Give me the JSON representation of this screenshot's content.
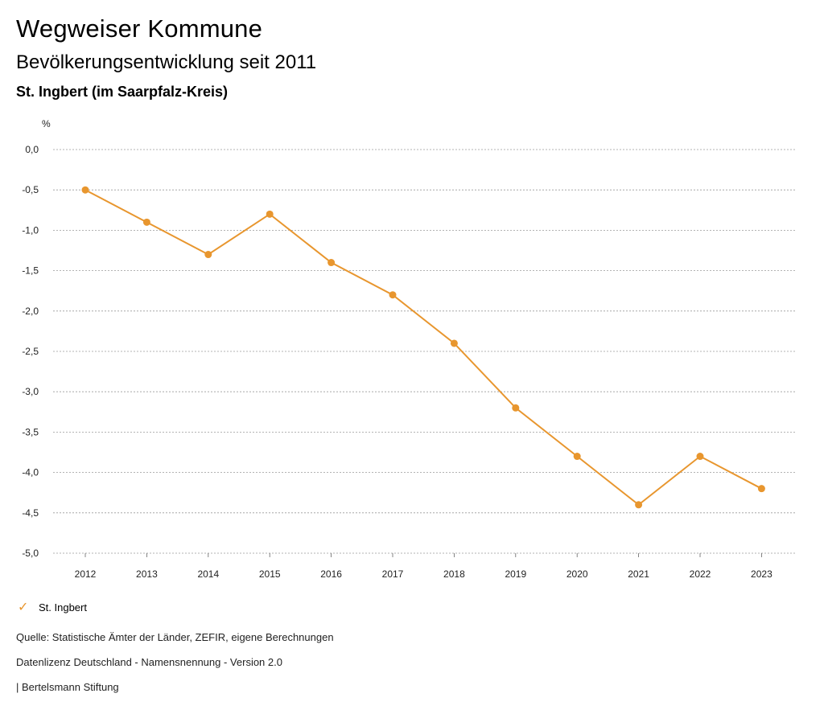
{
  "header": {
    "title": "Wegweiser Kommune",
    "subtitle": "Bevölkerungsentwicklung seit 2011",
    "region": "St. Ingbert (im Saarpfalz-Kreis)"
  },
  "chart_data": {
    "type": "line",
    "ylabel": "%",
    "xlabel": "",
    "categories": [
      "2012",
      "2013",
      "2014",
      "2015",
      "2016",
      "2017",
      "2018",
      "2019",
      "2020",
      "2021",
      "2022",
      "2023"
    ],
    "series": [
      {
        "name": "St. Ingbert",
        "values": [
          -0.5,
          -0.9,
          -1.3,
          -0.8,
          -1.4,
          -1.8,
          -2.4,
          -3.2,
          -3.8,
          -4.4,
          -3.8,
          -4.2
        ],
        "color": "#e8962e"
      }
    ],
    "ylim": [
      -5.0,
      0.0
    ],
    "yticks": [
      "0,0",
      "-0,5",
      "-1,0",
      "-1,5",
      "-2,0",
      "-2,5",
      "-3,0",
      "-3,5",
      "-4,0",
      "-4,5",
      "-5,0"
    ],
    "ytick_values": [
      0,
      -0.5,
      -1,
      -1.5,
      -2,
      -2.5,
      -3,
      -3.5,
      -4,
      -4.5,
      -5
    ],
    "grid": true,
    "legend": "bottom-left"
  },
  "legend": {
    "label": "St. Ingbert",
    "icon": "check-icon",
    "color": "#e8962e"
  },
  "footer": {
    "source": "Quelle: Statistische Ämter der Länder, ZEFIR, eigene Berechnungen",
    "license": "Datenlizenz Deutschland - Namensnennung - Version 2.0",
    "publisher": "| Bertelsmann Stiftung"
  }
}
